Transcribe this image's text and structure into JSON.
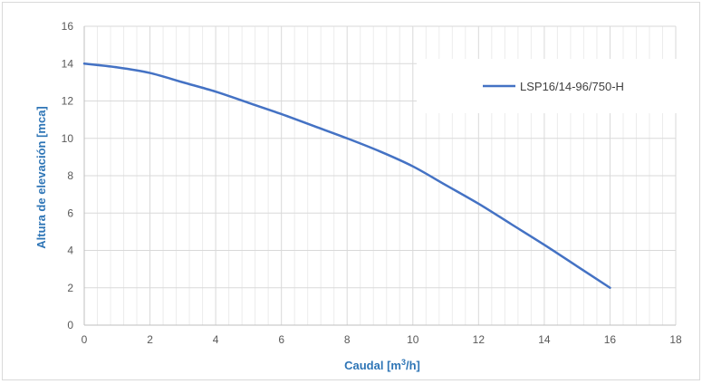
{
  "chart_data": {
    "type": "line",
    "xlabel": "Caudal [m",
    "xlabel_sup": "3",
    "xlabel_end": "/h]",
    "ylabel": "Altura de elevación [mca]",
    "xlim": [
      0,
      18
    ],
    "ylim": [
      0,
      16
    ],
    "x_ticks": [
      "0",
      "2",
      "4",
      "6",
      "8",
      "10",
      "12",
      "14",
      "16",
      "18"
    ],
    "y_ticks": [
      "0",
      "2",
      "4",
      "6",
      "8",
      "10",
      "12",
      "14",
      "16"
    ],
    "grid": true,
    "legend_position": "top-right",
    "series": [
      {
        "name": "LSP16/14-96/750-H",
        "color": "#4472c4",
        "x": [
          0,
          1,
          2,
          3,
          4,
          5,
          6,
          7,
          8,
          9,
          10,
          11,
          12,
          13,
          14,
          15,
          16
        ],
        "y": [
          14.0,
          13.8,
          13.5,
          13.0,
          12.5,
          11.9,
          11.3,
          10.65,
          10.0,
          9.3,
          8.5,
          7.5,
          6.5,
          5.4,
          4.3,
          3.15,
          2.0
        ]
      }
    ]
  }
}
